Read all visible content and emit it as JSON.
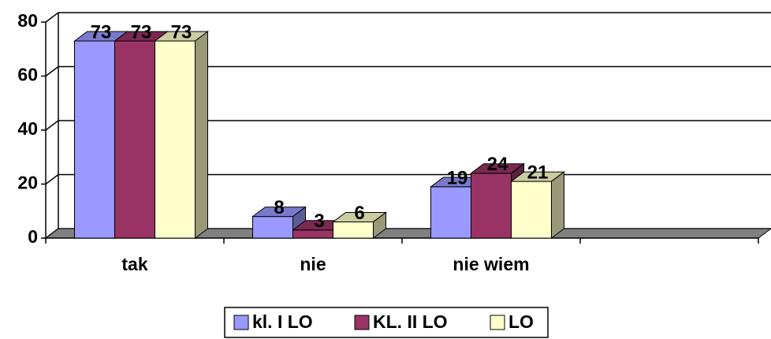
{
  "chart_data": {
    "type": "bar3d",
    "categories": [
      "tak",
      "nie",
      "nie wiem",
      null
    ],
    "series": [
      {
        "name": "kl. I LO",
        "color": "#9999ff",
        "values": [
          73,
          8,
          19,
          null
        ]
      },
      {
        "name": "KL. II LO",
        "color": "#993366",
        "values": [
          73,
          3,
          24,
          null
        ]
      },
      {
        "name": "LO",
        "color": "#ffffcc",
        "values": [
          73,
          6,
          21,
          null
        ]
      }
    ],
    "ylim": [
      0,
      80
    ],
    "yticks": [
      0,
      20,
      40,
      60,
      80
    ],
    "grid": true,
    "legend": "bottom"
  }
}
